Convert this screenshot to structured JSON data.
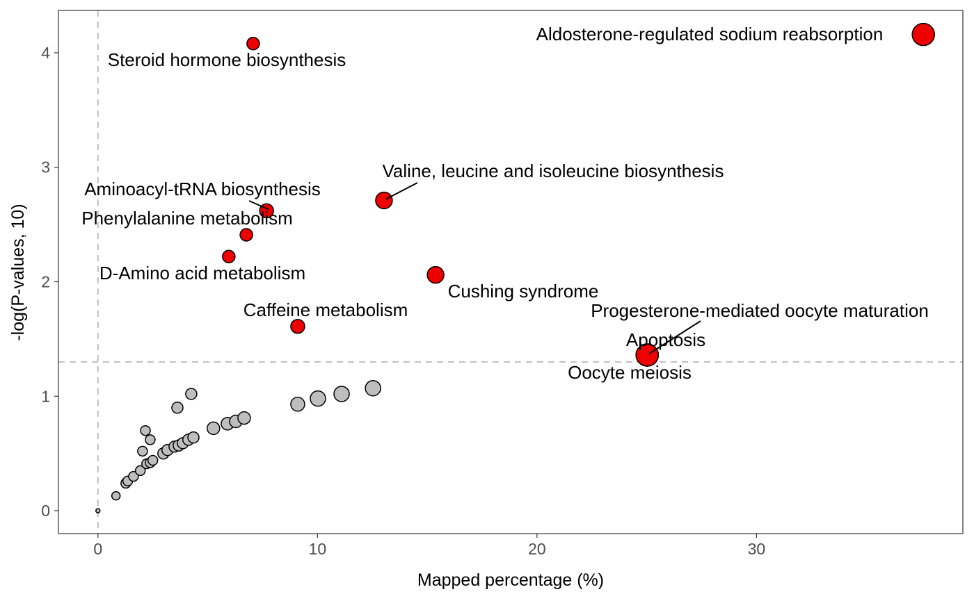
{
  "chart_data": {
    "type": "scatter",
    "title": "",
    "xlabel": "Mapped percentage (%)",
    "ylabel": "-log(P-values, 10)",
    "xlim": [
      -1.8,
      39.4
    ],
    "ylim": [
      -0.2,
      4.37
    ],
    "xticks": [
      0,
      10,
      20,
      30
    ],
    "yticks": [
      0,
      1,
      2,
      3,
      4
    ],
    "xtick_labels": [
      "0",
      "10",
      "20",
      "30"
    ],
    "ytick_labels": [
      "0",
      "1",
      "2",
      "3",
      "4"
    ],
    "reference_lines": {
      "x": 0,
      "y": 1.3
    },
    "grid": false,
    "colors": {
      "significant": "#ee0000",
      "non_significant": "#bebebe",
      "outline": "#000000",
      "ref_line": "#bebebe"
    },
    "significant_points": [
      {
        "label": "Aldosterone-regulated sodium reabsorption",
        "x": 37.6,
        "y": 4.16,
        "size": 16
      },
      {
        "label": "Steroid hormone biosynthesis",
        "x": 7.07,
        "y": 4.08,
        "size": 9
      },
      {
        "label": "Valine, leucine and isoleucine biosynthesis",
        "x": 13.03,
        "y": 2.71,
        "size": 12
      },
      {
        "label": "Aminoacyl-tRNA biosynthesis",
        "x": 7.68,
        "y": 2.62,
        "size": 10
      },
      {
        "label": "Phenylalanine metabolism",
        "x": 6.76,
        "y": 2.41,
        "size": 9
      },
      {
        "label": "D-Amino acid metabolism",
        "x": 5.96,
        "y": 2.22,
        "size": 9
      },
      {
        "label": "Cushing syndrome",
        "x": 15.38,
        "y": 2.06,
        "size": 12
      },
      {
        "label": "Caffeine metabolism",
        "x": 9.1,
        "y": 1.61,
        "size": 10
      },
      {
        "label": "Progesterone-mediated oocyte maturation",
        "x": 25.02,
        "y": 1.36,
        "size": 16
      },
      {
        "label": "Apoptosis",
        "x": 25.02,
        "y": 1.36,
        "size": 16
      },
      {
        "label": "Oocyte meiosis",
        "x": 25.02,
        "y": 1.36,
        "size": 16
      }
    ],
    "other_points": [
      {
        "x": 0,
        "y": 0,
        "size": 3
      },
      {
        "x": 0.82,
        "y": 0.13,
        "size": 6
      },
      {
        "x": 1.27,
        "y": 0.24,
        "size": 7
      },
      {
        "x": 1.36,
        "y": 0.26,
        "size": 7
      },
      {
        "x": 1.62,
        "y": 0.3,
        "size": 7
      },
      {
        "x": 1.93,
        "y": 0.35,
        "size": 7
      },
      {
        "x": 2.03,
        "y": 0.52,
        "size": 7
      },
      {
        "x": 2.16,
        "y": 0.7,
        "size": 7
      },
      {
        "x": 2.22,
        "y": 0.41,
        "size": 7
      },
      {
        "x": 2.38,
        "y": 0.62,
        "size": 7
      },
      {
        "x": 2.38,
        "y": 0.42,
        "size": 7
      },
      {
        "x": 2.5,
        "y": 0.44,
        "size": 7
      },
      {
        "x": 2.98,
        "y": 0.5,
        "size": 8
      },
      {
        "x": 3.17,
        "y": 0.53,
        "size": 8
      },
      {
        "x": 3.49,
        "y": 0.56,
        "size": 8
      },
      {
        "x": 3.62,
        "y": 0.9,
        "size": 8
      },
      {
        "x": 3.68,
        "y": 0.57,
        "size": 8
      },
      {
        "x": 3.87,
        "y": 0.59,
        "size": 8
      },
      {
        "x": 4.12,
        "y": 0.62,
        "size": 8
      },
      {
        "x": 4.25,
        "y": 1.02,
        "size": 8
      },
      {
        "x": 4.35,
        "y": 0.64,
        "size": 8
      },
      {
        "x": 5.26,
        "y": 0.72,
        "size": 9
      },
      {
        "x": 5.9,
        "y": 0.76,
        "size": 9
      },
      {
        "x": 6.28,
        "y": 0.78,
        "size": 9
      },
      {
        "x": 6.66,
        "y": 0.81,
        "size": 9
      },
      {
        "x": 9.1,
        "y": 0.93,
        "size": 10
      },
      {
        "x": 10.02,
        "y": 0.98,
        "size": 11
      },
      {
        "x": 11.1,
        "y": 1.02,
        "size": 11
      },
      {
        "x": 12.53,
        "y": 1.07,
        "size": 11
      }
    ]
  }
}
